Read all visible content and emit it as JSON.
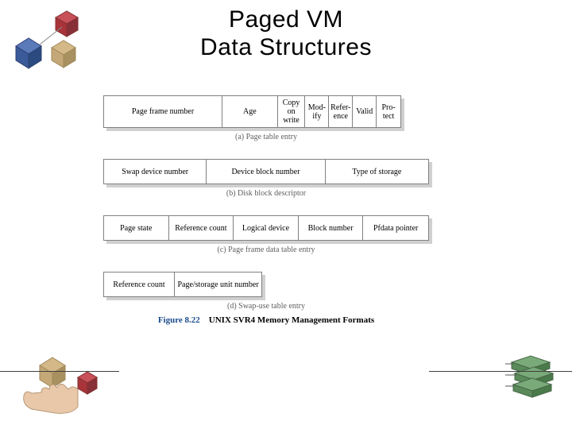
{
  "title_line1": "Paged VM",
  "title_line2": "Data Structures",
  "structures": [
    {
      "cells": [
        {
          "label": "Page frame number",
          "width": 150
        },
        {
          "label": "Age",
          "width": 70
        },
        {
          "label": "Copy on write",
          "width": 35
        },
        {
          "label": "Mod-ify",
          "width": 30
        },
        {
          "label": "Refer-ence",
          "width": 30
        },
        {
          "label": "Valid",
          "width": 30
        },
        {
          "label": "Pro-tect",
          "width": 30
        }
      ],
      "caption": "(a) Page table entry"
    },
    {
      "cells": [
        {
          "label": "Swap device number",
          "width": 130
        },
        {
          "label": "Device block number",
          "width": 150
        },
        {
          "label": "Type of storage",
          "width": 130
        }
      ],
      "caption": "(b) Disk block descriptor"
    },
    {
      "cells": [
        {
          "label": "Page state",
          "width": 82
        },
        {
          "label": "Reference count",
          "width": 82
        },
        {
          "label": "Logical device",
          "width": 82
        },
        {
          "label": "Block number",
          "width": 82
        },
        {
          "label": "Pfdata pointer",
          "width": 82
        }
      ],
      "caption": "(c) Page frame data table entry"
    },
    {
      "cells": [
        {
          "label": "Reference count",
          "width": 90
        },
        {
          "label": "Page/storage unit number",
          "width": 110
        }
      ],
      "caption": "(d) Swap-use table entry"
    }
  ],
  "figure_num": "Figure 8.22",
  "figure_desc": "UNIX SVR4 Memory Management Formats",
  "colors": {
    "cube_red": "#a8343a",
    "cube_blue": "#3a5a9a",
    "cube_tan": "#c4a878",
    "cube_green": "#5a8a5a"
  }
}
